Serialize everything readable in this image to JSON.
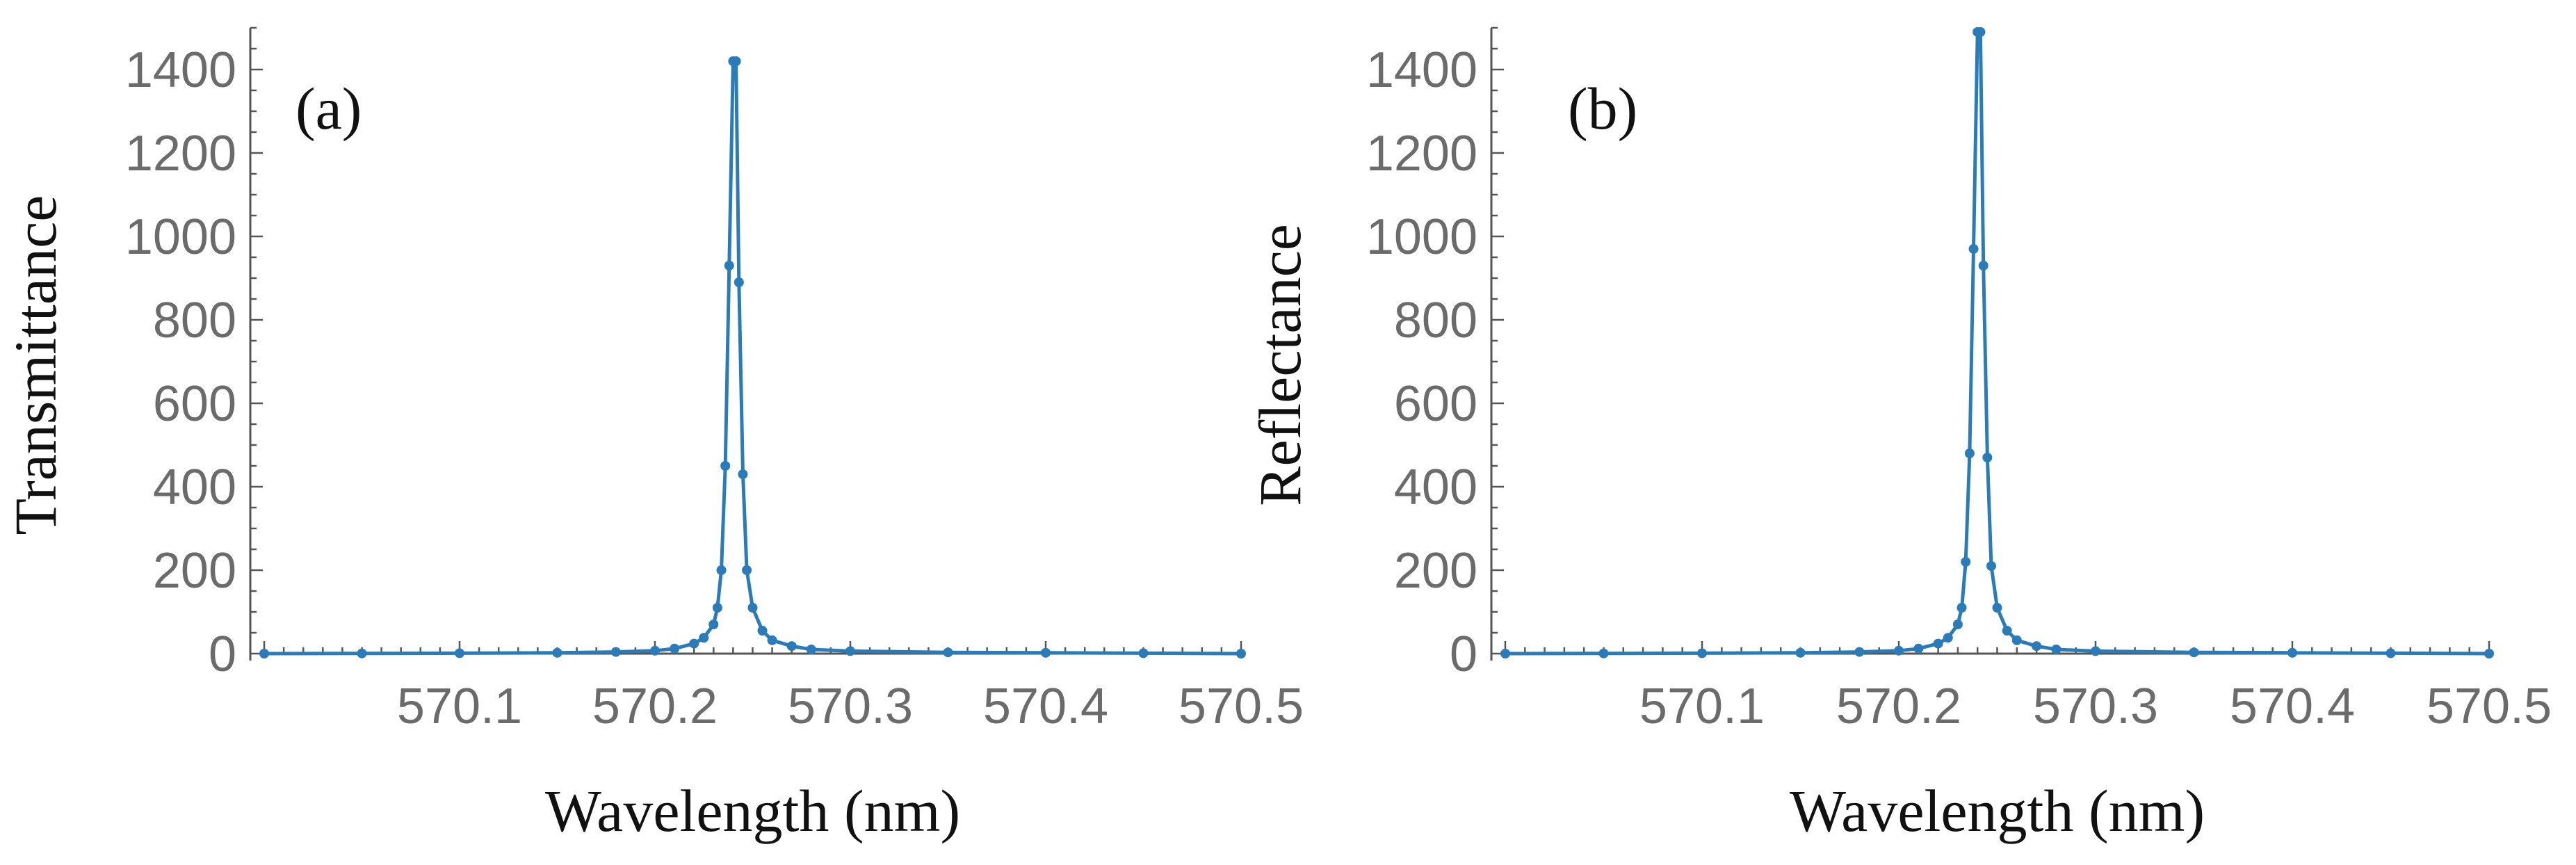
{
  "chart_data": [
    {
      "type": "line",
      "panel_label": "(a)",
      "xlabel": "Wavelength (nm)",
      "ylabel": "Transmittance",
      "xlim": [
        570.0,
        570.5
      ],
      "ylim": [
        0,
        1500
      ],
      "xticks": [
        570.1,
        570.2,
        570.3,
        570.4,
        570.5
      ],
      "xtick_labels": [
        "570.1",
        "570.2",
        "570.3",
        "570.4",
        "570.5"
      ],
      "yticks": [
        0,
        200,
        400,
        600,
        800,
        1000,
        1200,
        1400
      ],
      "ytick_labels": [
        "0",
        "200",
        "400",
        "600",
        "800",
        "1000",
        "1200",
        "1400"
      ],
      "series": [
        {
          "color": "#2b7bb9",
          "x": [
            570.0,
            570.05,
            570.1,
            570.15,
            570.18,
            570.2,
            570.21,
            570.22,
            570.225,
            570.23,
            570.232,
            570.234,
            570.236,
            570.238,
            570.24,
            570.2415,
            570.243,
            570.245,
            570.247,
            570.25,
            570.255,
            570.26,
            570.27,
            570.28,
            570.3,
            570.35,
            570.4,
            570.45,
            570.5
          ],
          "y": [
            0,
            0.5,
            1,
            2,
            4,
            7,
            12,
            24,
            38,
            70,
            110,
            200,
            450,
            930,
            1420,
            1420,
            890,
            430,
            200,
            110,
            55,
            32,
            18,
            10,
            6,
            3,
            2,
            1,
            0
          ]
        }
      ],
      "grid": false
    },
    {
      "type": "line",
      "panel_label": "(b)",
      "xlabel": "Wavelength (nm)",
      "ylabel": "Reflectance",
      "xlim": [
        570.0,
        570.5
      ],
      "ylim": [
        0,
        1500
      ],
      "xticks": [
        570.1,
        570.2,
        570.3,
        570.4,
        570.5
      ],
      "xtick_labels": [
        "570.1",
        "570.2",
        "570.3",
        "570.4",
        "570.5"
      ],
      "yticks": [
        0,
        200,
        400,
        600,
        800,
        1000,
        1200,
        1400
      ],
      "ytick_labels": [
        "0",
        "200",
        "400",
        "600",
        "800",
        "1000",
        "1200",
        "1400"
      ],
      "series": [
        {
          "color": "#2b7bb9",
          "x": [
            570.0,
            570.05,
            570.1,
            570.15,
            570.18,
            570.2,
            570.21,
            570.22,
            570.225,
            570.23,
            570.232,
            570.234,
            570.236,
            570.238,
            570.24,
            570.2415,
            570.243,
            570.245,
            570.247,
            570.25,
            570.255,
            570.26,
            570.27,
            570.28,
            570.3,
            570.35,
            570.4,
            570.45,
            570.5
          ],
          "y": [
            0,
            0.5,
            1,
            2,
            4,
            7,
            12,
            24,
            38,
            70,
            110,
            220,
            480,
            970,
            1490,
            1490,
            930,
            470,
            210,
            110,
            55,
            32,
            18,
            10,
            6,
            3,
            2,
            1,
            0
          ]
        }
      ],
      "grid": false
    }
  ]
}
